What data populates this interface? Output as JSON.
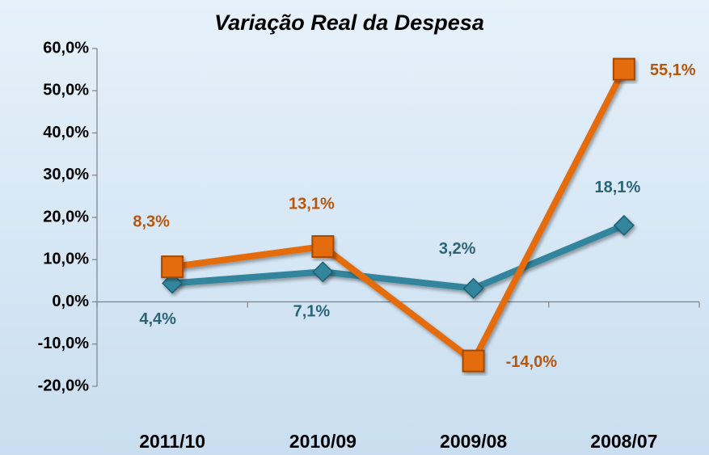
{
  "chart_data": {
    "type": "line",
    "title": "Variação Real da Despesa",
    "categories": [
      "2011/10",
      "2010/09",
      "2009/08",
      "2008/07"
    ],
    "series": [
      {
        "color": "#31859c",
        "values": [
          4.4,
          7.1,
          3.2,
          18.1
        ],
        "value_labels": [
          "4,4%",
          "7,1%",
          "3,2%",
          "18,1%"
        ]
      },
      {
        "color": "#e46c0a",
        "values": [
          8.3,
          13.1,
          -14.0,
          55.1
        ],
        "value_labels": [
          "8,3%",
          "13,1%",
          "-14,0%",
          "55,1%"
        ]
      }
    ],
    "ylim": [
      -20,
      60
    ],
    "yticks": [
      {
        "value": -20,
        "label": "-20,0%"
      },
      {
        "value": -10,
        "label": "-10,0%"
      },
      {
        "value": 0,
        "label": "0,0%"
      },
      {
        "value": 10,
        "label": "10,0%"
      },
      {
        "value": 20,
        "label": "20,0%"
      },
      {
        "value": 30,
        "label": "30,0%"
      },
      {
        "value": 40,
        "label": "40,0%"
      },
      {
        "value": 50,
        "label": "50,0%"
      },
      {
        "value": 60,
        "label": "60,0%"
      }
    ],
    "grid": false
  }
}
